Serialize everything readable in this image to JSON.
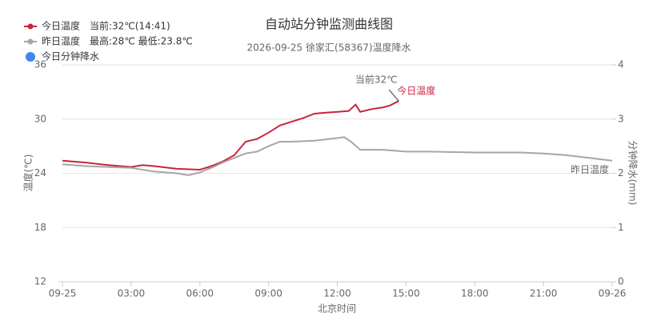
{
  "chart_data": {
    "type": "line",
    "title": "自动站分钟监测曲线图",
    "subtitle": "2026-09-25 徐家汇(58367)温度降水",
    "x_label": "北京时间",
    "y_label": "温度(℃)",
    "y2_label": "分钟降水(mm)",
    "xlim": [
      0,
      24
    ],
    "xticks": [
      {
        "value": 0,
        "label": "09-25"
      },
      {
        "value": 3,
        "label": "03:00"
      },
      {
        "value": 6,
        "label": "06:00"
      },
      {
        "value": 9,
        "label": "09:00"
      },
      {
        "value": 12,
        "label": "12:00"
      },
      {
        "value": 15,
        "label": "15:00"
      },
      {
        "value": 18,
        "label": "18:00"
      },
      {
        "value": 21,
        "label": "21:00"
      },
      {
        "value": 24,
        "label": "09-26"
      }
    ],
    "ylim": [
      12,
      36
    ],
    "yticks": [
      12,
      18,
      24,
      30,
      36
    ],
    "y2lim": [
      0,
      4
    ],
    "y2ticks": [
      0,
      1,
      2,
      3,
      4
    ],
    "grid": true,
    "annotation": "当前32℃",
    "series": [
      {
        "name": "今日温度",
        "color": "#c8243d",
        "legend_note": "当前:32℃(14:41)",
        "x": [
          0,
          1,
          2,
          3,
          3.5,
          4,
          5,
          6,
          6.5,
          7,
          7.5,
          8,
          8.5,
          9,
          9.5,
          10,
          10.5,
          11,
          11.5,
          12,
          12.5,
          12.8,
          13,
          13.5,
          14,
          14.3,
          14.68
        ],
        "values": [
          25.4,
          25.2,
          24.9,
          24.7,
          24.9,
          24.8,
          24.5,
          24.4,
          24.8,
          25.3,
          26,
          27.5,
          27.8,
          28.5,
          29.3,
          29.7,
          30.1,
          30.6,
          30.7,
          30.8,
          30.9,
          31.6,
          30.8,
          31.1,
          31.3,
          31.5,
          32
        ]
      },
      {
        "name": "昨日温度",
        "color": "#a6a6a6",
        "legend_note": "最高:28℃ 最低:23.8℃",
        "x": [
          0,
          1,
          2,
          3,
          4,
          5,
          5.5,
          6,
          6.5,
          7,
          7.5,
          8,
          8.5,
          9,
          9.5,
          10,
          11,
          12,
          12.3,
          12.6,
          13,
          14,
          15,
          16,
          18,
          20,
          21,
          22,
          23,
          24
        ],
        "values": [
          25,
          24.8,
          24.7,
          24.6,
          24.2,
          24,
          23.8,
          24.1,
          24.6,
          25.2,
          25.7,
          26.2,
          26.4,
          27,
          27.5,
          27.5,
          27.6,
          27.9,
          28,
          27.5,
          26.6,
          26.6,
          26.4,
          26.4,
          26.3,
          26.3,
          26.2,
          26,
          25.7,
          25.4
        ]
      },
      {
        "name": "今日分钟降水",
        "color": "#3f86f0",
        "axis": "y2",
        "x": [],
        "values": []
      }
    ]
  }
}
